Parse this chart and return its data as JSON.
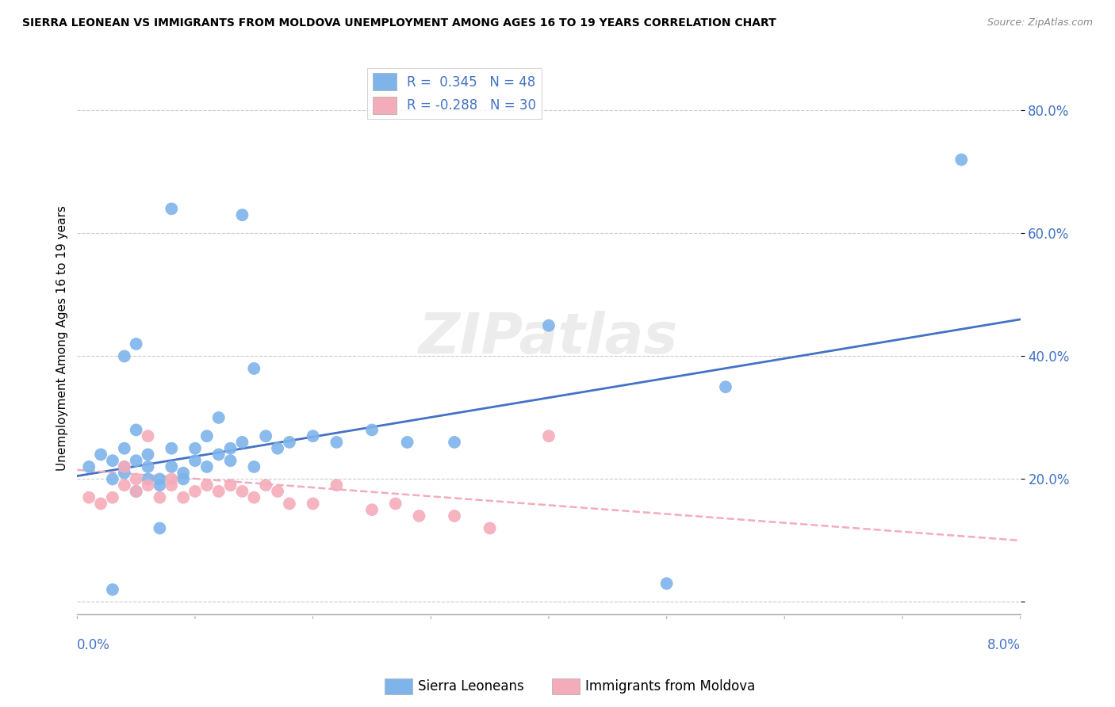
{
  "title": "SIERRA LEONEAN VS IMMIGRANTS FROM MOLDOVA UNEMPLOYMENT AMONG AGES 16 TO 19 YEARS CORRELATION CHART",
  "source": "Source: ZipAtlas.com",
  "ylabel": "Unemployment Among Ages 16 to 19 years",
  "y_ticks": [
    0.0,
    0.2,
    0.4,
    0.6,
    0.8
  ],
  "y_tick_labels": [
    "",
    "20.0%",
    "40.0%",
    "60.0%",
    "80.0%"
  ],
  "x_range": [
    0.0,
    0.08
  ],
  "y_range": [
    -0.02,
    0.88
  ],
  "blue_color": "#7EB4EA",
  "pink_color": "#F4ACBA",
  "blue_line_color": "#4472C4",
  "pink_line_color": "#F4ACBA",
  "sierra_x": [
    0.001,
    0.002,
    0.003,
    0.003,
    0.004,
    0.004,
    0.004,
    0.005,
    0.005,
    0.005,
    0.006,
    0.006,
    0.006,
    0.007,
    0.007,
    0.008,
    0.008,
    0.009,
    0.009,
    0.01,
    0.01,
    0.011,
    0.011,
    0.012,
    0.012,
    0.013,
    0.013,
    0.014,
    0.015,
    0.015,
    0.016,
    0.017,
    0.018,
    0.02,
    0.022,
    0.025,
    0.028,
    0.032,
    0.004,
    0.005,
    0.008,
    0.014,
    0.04,
    0.05,
    0.055,
    0.075,
    0.007,
    0.003
  ],
  "sierra_y": [
    0.22,
    0.24,
    0.2,
    0.23,
    0.21,
    0.22,
    0.25,
    0.23,
    0.28,
    0.18,
    0.24,
    0.2,
    0.22,
    0.2,
    0.19,
    0.22,
    0.25,
    0.21,
    0.2,
    0.23,
    0.25,
    0.27,
    0.22,
    0.3,
    0.24,
    0.25,
    0.23,
    0.26,
    0.38,
    0.22,
    0.27,
    0.25,
    0.26,
    0.27,
    0.26,
    0.28,
    0.26,
    0.26,
    0.4,
    0.42,
    0.64,
    0.63,
    0.45,
    0.03,
    0.35,
    0.72,
    0.12,
    0.02
  ],
  "moldova_x": [
    0.001,
    0.002,
    0.003,
    0.004,
    0.004,
    0.005,
    0.005,
    0.006,
    0.006,
    0.007,
    0.008,
    0.008,
    0.009,
    0.01,
    0.011,
    0.012,
    0.013,
    0.014,
    0.015,
    0.016,
    0.017,
    0.018,
    0.02,
    0.022,
    0.025,
    0.027,
    0.029,
    0.032,
    0.035,
    0.04
  ],
  "moldova_y": [
    0.17,
    0.16,
    0.17,
    0.19,
    0.22,
    0.18,
    0.2,
    0.19,
    0.27,
    0.17,
    0.19,
    0.2,
    0.17,
    0.18,
    0.19,
    0.18,
    0.19,
    0.18,
    0.17,
    0.19,
    0.18,
    0.16,
    0.16,
    0.19,
    0.15,
    0.16,
    0.14,
    0.14,
    0.12,
    0.27
  ],
  "blue_trend_x": [
    0.0,
    0.08
  ],
  "blue_trend_y": [
    0.205,
    0.46
  ],
  "pink_trend_x": [
    0.0,
    0.08
  ],
  "pink_trend_y": [
    0.215,
    0.1
  ]
}
